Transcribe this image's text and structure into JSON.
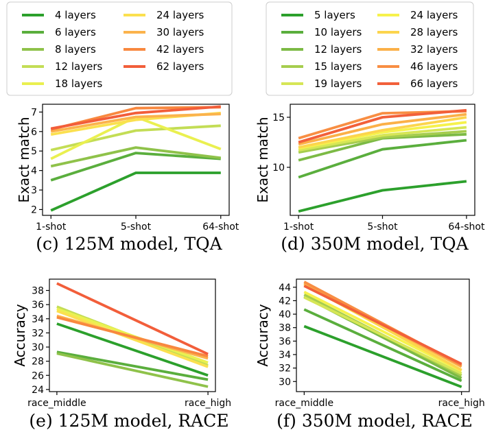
{
  "legends": [
    {
      "entries": [
        {
          "label": "4 layers",
          "color": "#2ca02c"
        },
        {
          "label": "6 layers",
          "color": "#5aae3d"
        },
        {
          "label": "8 layers",
          "color": "#8fc24a"
        },
        {
          "label": "12 layers",
          "color": "#c3dd55"
        },
        {
          "label": "18 layers",
          "color": "#eaf050"
        },
        {
          "label": "24 layers",
          "color": "#fbe04f"
        },
        {
          "label": "30 layers",
          "color": "#fbb34c"
        },
        {
          "label": "42 layers",
          "color": "#f8883f"
        },
        {
          "label": "62 layers",
          "color": "#f25e3a"
        }
      ]
    },
    {
      "entries": [
        {
          "label": "5 layers",
          "color": "#2ca02c"
        },
        {
          "label": "10 layers",
          "color": "#5aae3d"
        },
        {
          "label": "12 layers",
          "color": "#7cba45"
        },
        {
          "label": "15 layers",
          "color": "#a6cd4e"
        },
        {
          "label": "19 layers",
          "color": "#d6e656"
        },
        {
          "label": "24 layers",
          "color": "#f6f24c"
        },
        {
          "label": "28 layers",
          "color": "#fcd54d"
        },
        {
          "label": "32 layers",
          "color": "#fbb048"
        },
        {
          "label": "46 layers",
          "color": "#f88e43"
        },
        {
          "label": "66 layers",
          "color": "#f2603a"
        }
      ]
    }
  ],
  "chart_data": [
    {
      "type": "line",
      "caption": "(c) 125M model, TQA",
      "ylabel": "Exact match",
      "categories": [
        "1-shot",
        "5-shot",
        "64-shot"
      ],
      "ylim": [
        1.7,
        7.4
      ],
      "yticks": [
        2,
        3,
        4,
        5,
        6,
        7
      ],
      "series": [
        {
          "color": "#2ca02c",
          "values": [
            1.95,
            3.88,
            3.88
          ]
        },
        {
          "color": "#5aae3d",
          "values": [
            3.5,
            4.9,
            4.6
          ]
        },
        {
          "color": "#8fc24a",
          "values": [
            4.22,
            5.18,
            4.65
          ]
        },
        {
          "color": "#c3dd55",
          "values": [
            5.05,
            6.05,
            6.3
          ]
        },
        {
          "color": "#eaf050",
          "values": [
            4.6,
            6.75,
            5.1
          ]
        },
        {
          "color": "#fbe04f",
          "values": [
            5.85,
            6.6,
            6.95
          ]
        },
        {
          "color": "#fbb34c",
          "values": [
            6.0,
            6.75,
            6.9
          ]
        },
        {
          "color": "#f8883f",
          "values": [
            6.1,
            7.2,
            7.25
          ]
        },
        {
          "color": "#f25e3a",
          "values": [
            6.15,
            6.95,
            7.28
          ]
        }
      ]
    },
    {
      "type": "line",
      "caption": "(d) 350M model, TQA",
      "ylabel": "Exact match",
      "categories": [
        "1-shot",
        "5-shot",
        "64-shot"
      ],
      "ylim": [
        5.2,
        16.3
      ],
      "yticks": [
        10,
        15
      ],
      "series": [
        {
          "color": "#2ca02c",
          "values": [
            5.6,
            7.7,
            8.6
          ]
        },
        {
          "color": "#5aae3d",
          "values": [
            9.0,
            11.8,
            12.7
          ]
        },
        {
          "color": "#7cba45",
          "values": [
            10.7,
            12.9,
            13.3
          ]
        },
        {
          "color": "#a6cd4e",
          "values": [
            11.5,
            13.0,
            13.6
          ]
        },
        {
          "color": "#d6e656",
          "values": [
            11.7,
            13.2,
            14.0
          ]
        },
        {
          "color": "#f6f24c",
          "values": [
            11.9,
            13.5,
            14.5
          ]
        },
        {
          "color": "#fcd54d",
          "values": [
            12.0,
            13.7,
            15.0
          ]
        },
        {
          "color": "#fbb048",
          "values": [
            12.3,
            14.3,
            15.3
          ]
        },
        {
          "color": "#f88e43",
          "values": [
            12.9,
            15.4,
            15.6
          ]
        },
        {
          "color": "#f2603a",
          "values": [
            12.5,
            15.0,
            15.7
          ]
        }
      ]
    },
    {
      "type": "line",
      "caption": "(e) 125M model, RACE",
      "ylabel": "Accuracy",
      "categories": [
        "race_middle",
        "race_high"
      ],
      "ylim": [
        23.7,
        39.6
      ],
      "yticks": [
        24,
        26,
        28,
        30,
        32,
        34,
        36,
        38
      ],
      "series": [
        {
          "color": "#2ca02c",
          "values": [
            33.3,
            26.0
          ]
        },
        {
          "color": "#5aae3d",
          "values": [
            29.3,
            25.4
          ]
        },
        {
          "color": "#8fc24a",
          "values": [
            29.1,
            24.4
          ]
        },
        {
          "color": "#c3dd55",
          "values": [
            35.7,
            27.4
          ]
        },
        {
          "color": "#eaf050",
          "values": [
            35.4,
            27.8
          ]
        },
        {
          "color": "#fbe04f",
          "values": [
            35.1,
            27.2
          ]
        },
        {
          "color": "#fbb34c",
          "values": [
            34.4,
            28.4
          ]
        },
        {
          "color": "#f8883f",
          "values": [
            34.2,
            28.7
          ]
        },
        {
          "color": "#f25e3a",
          "values": [
            39.0,
            29.0
          ]
        }
      ]
    },
    {
      "type": "line",
      "caption": "(f) 350M model, RACE",
      "ylabel": "Accuracy",
      "categories": [
        "race_middle",
        "race_high"
      ],
      "ylim": [
        28.5,
        45.2
      ],
      "yticks": [
        30,
        32,
        34,
        36,
        38,
        40,
        42,
        44
      ],
      "series": [
        {
          "color": "#2ca02c",
          "values": [
            38.2,
            29.2
          ]
        },
        {
          "color": "#5aae3d",
          "values": [
            40.7,
            30.1
          ]
        },
        {
          "color": "#7cba45",
          "values": [
            42.6,
            30.5
          ]
        },
        {
          "color": "#a6cd4e",
          "values": [
            42.9,
            30.9
          ]
        },
        {
          "color": "#d6e656",
          "values": [
            42.5,
            31.2
          ]
        },
        {
          "color": "#f6f24c",
          "values": [
            43.3,
            31.6
          ]
        },
        {
          "color": "#fcd54d",
          "values": [
            44.4,
            31.7
          ]
        },
        {
          "color": "#fbb048",
          "values": [
            44.6,
            32.2
          ]
        },
        {
          "color": "#f88e43",
          "values": [
            44.8,
            32.4
          ]
        },
        {
          "color": "#f2603a",
          "values": [
            44.2,
            32.6
          ]
        }
      ]
    }
  ]
}
